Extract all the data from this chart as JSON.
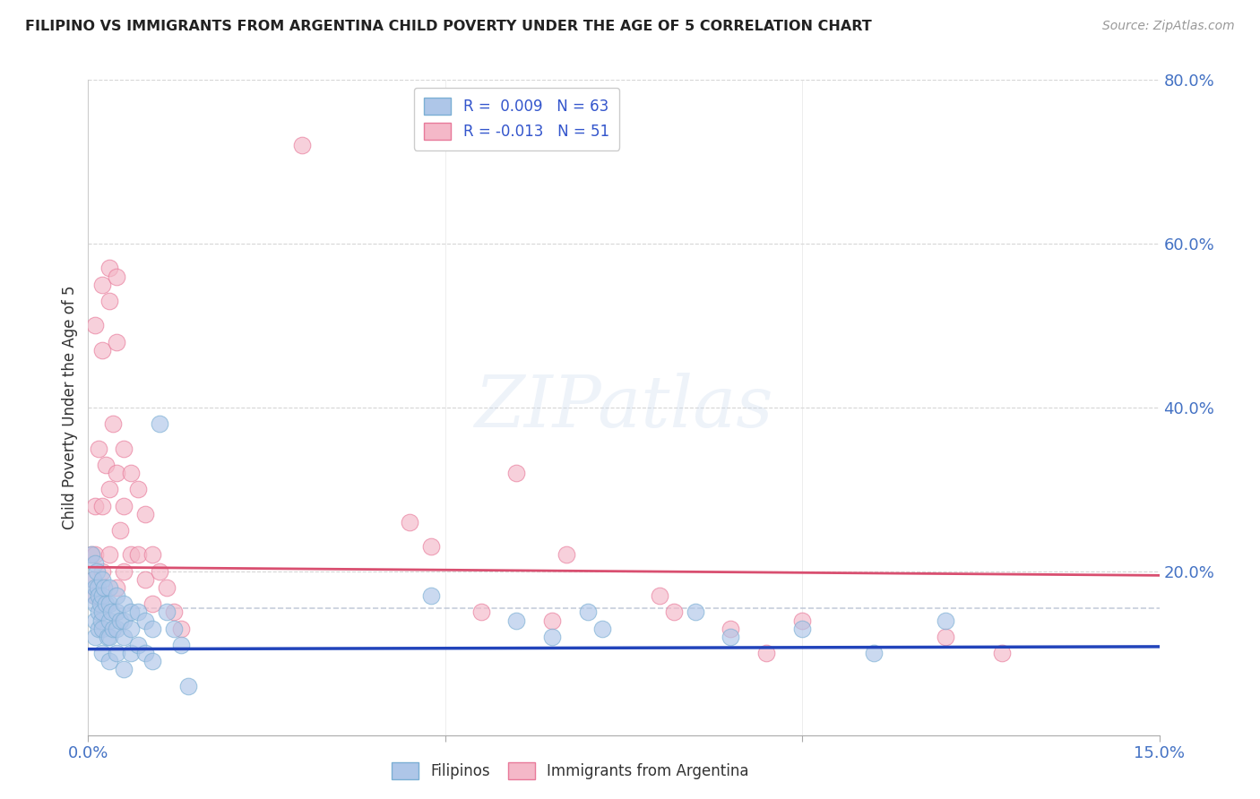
{
  "title": "FILIPINO VS IMMIGRANTS FROM ARGENTINA CHILD POVERTY UNDER THE AGE OF 5 CORRELATION CHART",
  "source": "Source: ZipAtlas.com",
  "ylabel": "Child Poverty Under the Age of 5",
  "xlim": [
    0.0,
    0.15
  ],
  "ylim": [
    0.0,
    0.8
  ],
  "ytick_positions": [
    0.2,
    0.4,
    0.6,
    0.8
  ],
  "ytick_labels": [
    "20.0%",
    "40.0%",
    "60.0%",
    "80.0%"
  ],
  "xtick_positions": [
    0.0,
    0.15
  ],
  "xtick_labels": [
    "0.0%",
    "15.0%"
  ],
  "filipinos_color": "#aec6e8",
  "filipinos_edge": "#7bafd4",
  "argentina_color": "#f4b8c8",
  "argentina_edge": "#e87a9a",
  "trend_blue": "#2244bb",
  "trend_pink": "#d94f70",
  "trend_dashed_color": "#c0c8d8",
  "trend_dashed_y": 0.155,
  "watermark_text": "ZIPatlas",
  "background_color": "#ffffff",
  "legend_label_blue": "R =  0.009   N = 63",
  "legend_label_pink": "R = -0.013   N = 51",
  "bottom_legend_blue": "Filipinos",
  "bottom_legend_pink": "Immigrants from Argentina",
  "filipinos_x": [
    0.0005,
    0.0007,
    0.0008,
    0.001,
    0.001,
    0.001,
    0.001,
    0.001,
    0.0012,
    0.0013,
    0.0015,
    0.0015,
    0.0015,
    0.0017,
    0.0018,
    0.002,
    0.002,
    0.002,
    0.002,
    0.002,
    0.0022,
    0.0025,
    0.0027,
    0.003,
    0.003,
    0.003,
    0.003,
    0.003,
    0.0032,
    0.0035,
    0.004,
    0.004,
    0.004,
    0.004,
    0.0045,
    0.005,
    0.005,
    0.005,
    0.005,
    0.006,
    0.006,
    0.006,
    0.007,
    0.007,
    0.008,
    0.008,
    0.009,
    0.009,
    0.01,
    0.011,
    0.012,
    0.013,
    0.014,
    0.048,
    0.06,
    0.065,
    0.07,
    0.072,
    0.085,
    0.09,
    0.1,
    0.11,
    0.12
  ],
  "filipinos_y": [
    0.22,
    0.19,
    0.17,
    0.21,
    0.18,
    0.16,
    0.14,
    0.12,
    0.2,
    0.18,
    0.17,
    0.15,
    0.13,
    0.16,
    0.14,
    0.19,
    0.17,
    0.15,
    0.13,
    0.1,
    0.18,
    0.16,
    0.12,
    0.18,
    0.16,
    0.14,
    0.12,
    0.09,
    0.15,
    0.13,
    0.17,
    0.15,
    0.13,
    0.1,
    0.14,
    0.16,
    0.14,
    0.12,
    0.08,
    0.15,
    0.13,
    0.1,
    0.15,
    0.11,
    0.14,
    0.1,
    0.13,
    0.09,
    0.38,
    0.15,
    0.13,
    0.11,
    0.06,
    0.17,
    0.14,
    0.12,
    0.15,
    0.13,
    0.15,
    0.12,
    0.13,
    0.1,
    0.14
  ],
  "argentina_x": [
    0.0005,
    0.0007,
    0.001,
    0.001,
    0.001,
    0.001,
    0.0015,
    0.002,
    0.002,
    0.002,
    0.002,
    0.0025,
    0.003,
    0.003,
    0.003,
    0.003,
    0.0035,
    0.004,
    0.004,
    0.004,
    0.004,
    0.0045,
    0.005,
    0.005,
    0.005,
    0.006,
    0.006,
    0.007,
    0.007,
    0.008,
    0.008,
    0.009,
    0.009,
    0.01,
    0.011,
    0.012,
    0.013,
    0.03,
    0.045,
    0.048,
    0.055,
    0.06,
    0.065,
    0.067,
    0.08,
    0.082,
    0.09,
    0.095,
    0.1,
    0.12,
    0.128
  ],
  "argentina_y": [
    0.22,
    0.19,
    0.5,
    0.28,
    0.22,
    0.17,
    0.35,
    0.55,
    0.47,
    0.28,
    0.2,
    0.33,
    0.57,
    0.53,
    0.3,
    0.22,
    0.38,
    0.56,
    0.48,
    0.32,
    0.18,
    0.25,
    0.35,
    0.28,
    0.2,
    0.32,
    0.22,
    0.3,
    0.22,
    0.27,
    0.19,
    0.22,
    0.16,
    0.2,
    0.18,
    0.15,
    0.13,
    0.72,
    0.26,
    0.23,
    0.15,
    0.32,
    0.14,
    0.22,
    0.17,
    0.15,
    0.13,
    0.1,
    0.14,
    0.12,
    0.1
  ],
  "blue_line_x": [
    0.0,
    0.15
  ],
  "blue_line_y": [
    0.105,
    0.108
  ],
  "pink_line_x": [
    0.0,
    0.15
  ],
  "pink_line_y": [
    0.205,
    0.195
  ]
}
